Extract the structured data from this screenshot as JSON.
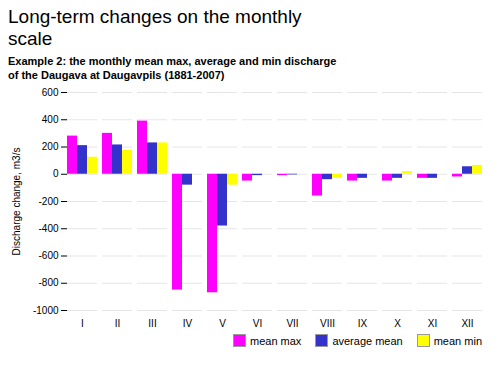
{
  "chart_data": {
    "type": "bar",
    "title": "Long-term changes on the monthly\nscale",
    "subtitle": "Example 2: the monthly mean max, average and min discharge\nof the Daugava at Daugavpils (1881-2007)",
    "ylabel": "Discharge change, m3/s",
    "categories": [
      "I",
      "II",
      "III",
      "IV",
      "V",
      "VI",
      "VII",
      "VIII",
      "IX",
      "X",
      "XI",
      "XII"
    ],
    "series": [
      {
        "name": "mean max",
        "color": "#FF00FF",
        "values": [
          280,
          300,
          390,
          -850,
          -870,
          -50,
          -10,
          -160,
          -50,
          -50,
          -30,
          -20
        ]
      },
      {
        "name": "average mean",
        "color": "#3333CC",
        "values": [
          210,
          215,
          230,
          -80,
          -380,
          -10,
          -5,
          -40,
          -30,
          -30,
          -30,
          55
        ]
      },
      {
        "name": "mean min",
        "color": "#FFFF00",
        "values": [
          125,
          175,
          230,
          0,
          -80,
          0,
          0,
          -30,
          0,
          20,
          0,
          65
        ]
      }
    ],
    "ylim": [
      -1000,
      600
    ],
    "yticks": [
      -1000,
      -800,
      -600,
      -400,
      -200,
      0,
      200,
      400,
      600
    ],
    "grid": true,
    "legend": "lower right"
  }
}
